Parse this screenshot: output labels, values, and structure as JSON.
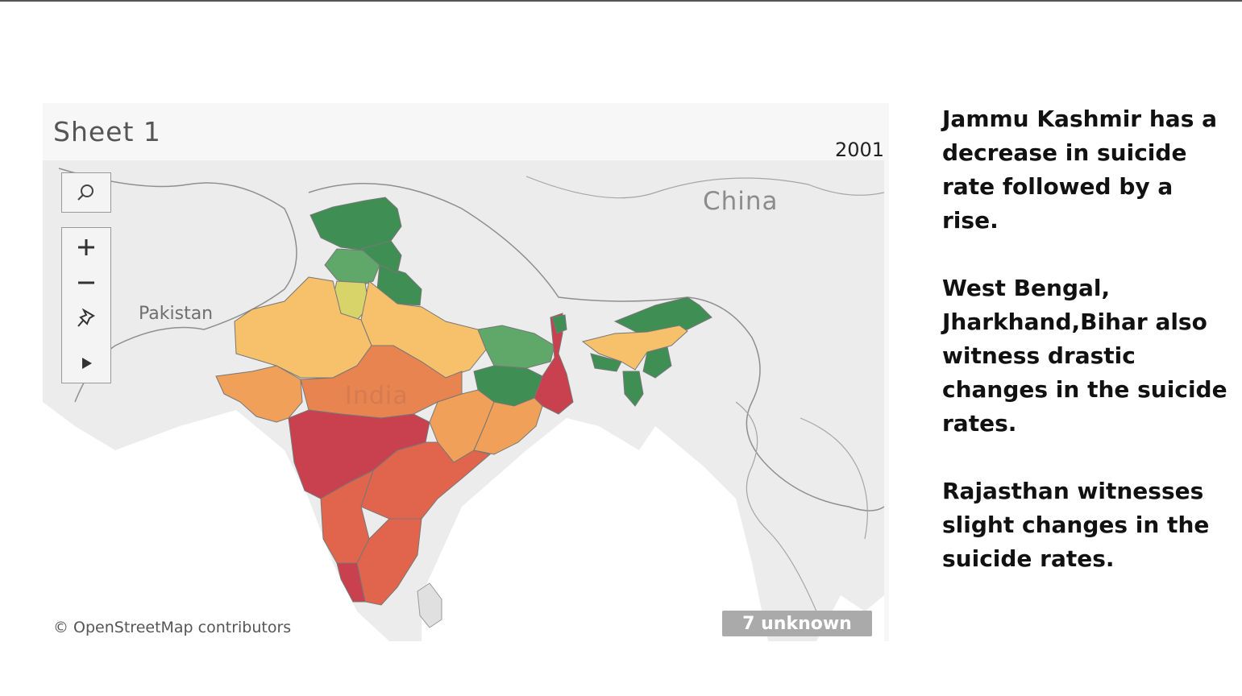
{
  "sheet": {
    "title": "Sheet 1",
    "year": "2001"
  },
  "map": {
    "place_labels": {
      "china": "China",
      "pakistan": "Pakistan",
      "india": "India"
    },
    "attribution": "© OpenStreetMap contributors",
    "unknown_badge": "7 unknown",
    "toolbar": [
      "search-icon",
      "zoom-in-icon",
      "zoom-out-icon",
      "pin-icon",
      "play-icon"
    ],
    "colors": {
      "dark_green": "#3f8f55",
      "mid_green": "#5fa86a",
      "yellow_green": "#d9d46a",
      "light_orange": "#f6c16a",
      "orange": "#f0a058",
      "deep_orange": "#e78450",
      "orange_red": "#e0654c",
      "red": "#c9404e",
      "background": "#ececec"
    }
  },
  "notes": [
    "Jammu Kashmir has a decrease in suicide rate followed by a rise.",
    "West Bengal, Jharkhand,Bihar also witness drastic changes in the suicide rates.",
    "Rajasthan witnesses slight changes in the suicide rates."
  ]
}
